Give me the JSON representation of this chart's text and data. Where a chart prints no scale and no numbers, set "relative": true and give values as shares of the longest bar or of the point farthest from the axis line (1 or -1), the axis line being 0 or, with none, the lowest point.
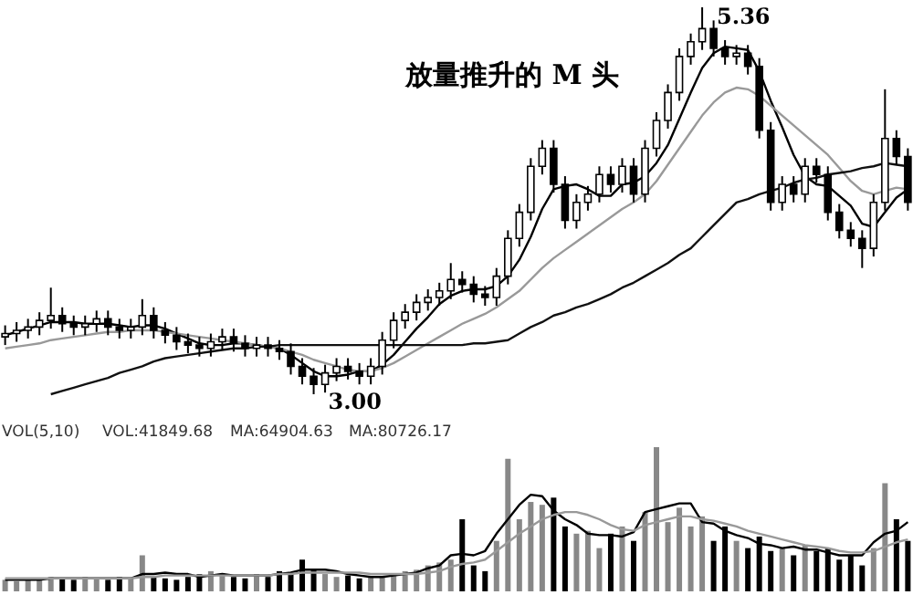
{
  "chart_data": [
    {
      "type": "candlestick",
      "title": "放量推升的 M 头",
      "annotations": [
        "5.36",
        "3.00"
      ],
      "categories": [
        null,
        null,
        null,
        null,
        null,
        null,
        null,
        null,
        null,
        null,
        null,
        null,
        null,
        null,
        null,
        null,
        null,
        null,
        null,
        null,
        null,
        null,
        null,
        null,
        null,
        null,
        null,
        null,
        null,
        null,
        null,
        null,
        null,
        null,
        null,
        null,
        null,
        null,
        null,
        null,
        null,
        null,
        null,
        null,
        null,
        null,
        null,
        null,
        null,
        null,
        null,
        null,
        null,
        null,
        null,
        null,
        null,
        null,
        null,
        null,
        null,
        null,
        null,
        null,
        null,
        null,
        null,
        null,
        null,
        null,
        null,
        null,
        null,
        null,
        null,
        null,
        null,
        null,
        null,
        null
      ],
      "ohlc": [
        [
          3.35,
          3.42,
          3.3,
          3.37
        ],
        [
          3.37,
          3.44,
          3.32,
          3.39
        ],
        [
          3.39,
          3.46,
          3.34,
          3.41
        ],
        [
          3.41,
          3.5,
          3.36,
          3.45
        ],
        [
          3.45,
          3.65,
          3.4,
          3.48
        ],
        [
          3.48,
          3.53,
          3.38,
          3.43
        ],
        [
          3.43,
          3.48,
          3.36,
          3.41
        ],
        [
          3.41,
          3.48,
          3.36,
          3.43
        ],
        [
          3.43,
          3.51,
          3.38,
          3.46
        ],
        [
          3.46,
          3.51,
          3.36,
          3.41
        ],
        [
          3.41,
          3.46,
          3.34,
          3.39
        ],
        [
          3.39,
          3.46,
          3.34,
          3.41
        ],
        [
          3.41,
          3.58,
          3.36,
          3.48
        ],
        [
          3.48,
          3.53,
          3.34,
          3.39
        ],
        [
          3.39,
          3.44,
          3.31,
          3.36
        ],
        [
          3.36,
          3.41,
          3.27,
          3.32
        ],
        [
          3.32,
          3.37,
          3.25,
          3.3
        ],
        [
          3.3,
          3.35,
          3.23,
          3.28
        ],
        [
          3.28,
          3.37,
          3.23,
          3.32
        ],
        [
          3.32,
          3.4,
          3.27,
          3.35
        ],
        [
          3.35,
          3.4,
          3.26,
          3.31
        ],
        [
          3.31,
          3.36,
          3.23,
          3.28
        ],
        [
          3.28,
          3.35,
          3.23,
          3.3
        ],
        [
          3.3,
          3.35,
          3.23,
          3.28
        ],
        [
          3.28,
          3.33,
          3.21,
          3.26
        ],
        [
          3.26,
          3.31,
          3.12,
          3.17
        ],
        [
          3.17,
          3.22,
          3.06,
          3.11
        ],
        [
          3.11,
          3.16,
          3.0,
          3.06
        ],
        [
          3.06,
          3.18,
          3.01,
          3.13
        ],
        [
          3.13,
          3.22,
          3.08,
          3.17
        ],
        [
          3.17,
          3.22,
          3.09,
          3.14
        ],
        [
          3.14,
          3.19,
          3.06,
          3.11
        ],
        [
          3.11,
          3.22,
          3.06,
          3.17
        ],
        [
          3.17,
          3.38,
          3.12,
          3.33
        ],
        [
          3.33,
          3.5,
          3.28,
          3.45
        ],
        [
          3.45,
          3.55,
          3.4,
          3.5
        ],
        [
          3.5,
          3.61,
          3.45,
          3.56
        ],
        [
          3.56,
          3.64,
          3.51,
          3.59
        ],
        [
          3.59,
          3.68,
          3.54,
          3.63
        ],
        [
          3.63,
          3.8,
          3.58,
          3.7
        ],
        [
          3.7,
          3.75,
          3.62,
          3.67
        ],
        [
          3.67,
          3.72,
          3.56,
          3.61
        ],
        [
          3.61,
          3.66,
          3.54,
          3.59
        ],
        [
          3.59,
          3.77,
          3.54,
          3.72
        ],
        [
          3.72,
          4.0,
          3.67,
          3.95
        ],
        [
          3.95,
          4.16,
          3.9,
          4.11
        ],
        [
          4.11,
          4.44,
          4.06,
          4.39
        ],
        [
          4.39,
          4.55,
          4.34,
          4.5
        ],
        [
          4.5,
          4.55,
          4.23,
          4.28
        ],
        [
          4.28,
          4.33,
          4.01,
          4.06
        ],
        [
          4.06,
          4.22,
          4.01,
          4.17
        ],
        [
          4.17,
          4.27,
          4.12,
          4.22
        ],
        [
          4.22,
          4.39,
          4.17,
          4.34
        ],
        [
          4.34,
          4.39,
          4.23,
          4.28
        ],
        [
          4.28,
          4.44,
          4.23,
          4.39
        ],
        [
          4.39,
          4.44,
          4.17,
          4.22
        ],
        [
          4.22,
          4.55,
          4.17,
          4.5
        ],
        [
          4.5,
          4.72,
          4.45,
          4.67
        ],
        [
          4.67,
          4.89,
          4.62,
          4.84
        ],
        [
          4.84,
          5.11,
          4.79,
          5.06
        ],
        [
          5.06,
          5.2,
          5.01,
          5.15
        ],
        [
          5.15,
          5.36,
          5.1,
          5.23
        ],
        [
          5.23,
          5.28,
          5.06,
          5.11
        ],
        [
          5.11,
          5.16,
          5.01,
          5.06
        ],
        [
          5.06,
          5.13,
          5.01,
          5.08
        ],
        [
          5.08,
          5.13,
          4.95,
          5.0
        ],
        [
          5.0,
          5.05,
          4.56,
          4.61
        ],
        [
          4.61,
          4.66,
          4.12,
          4.17
        ],
        [
          4.17,
          4.33,
          4.12,
          4.28
        ],
        [
          4.28,
          4.33,
          4.17,
          4.22
        ],
        [
          4.22,
          4.44,
          4.17,
          4.39
        ],
        [
          4.39,
          4.44,
          4.29,
          4.34
        ],
        [
          4.34,
          4.39,
          4.06,
          4.11
        ],
        [
          4.11,
          4.16,
          3.95,
          4.0
        ],
        [
          4.0,
          4.05,
          3.9,
          3.95
        ],
        [
          3.95,
          4.0,
          3.77,
          3.89
        ],
        [
          3.89,
          4.22,
          3.84,
          4.17
        ],
        [
          4.17,
          4.86,
          4.12,
          4.56
        ],
        [
          4.56,
          4.61,
          4.4,
          4.45
        ],
        [
          4.45,
          4.5,
          4.12,
          4.17
        ]
      ],
      "series": [
        {
          "type": "line",
          "color": "#000000",
          "values": [
            3.36,
            3.38,
            3.4,
            3.42,
            3.44,
            3.44,
            3.44,
            3.43,
            3.43,
            3.43,
            3.42,
            3.41,
            3.42,
            3.42,
            3.4,
            3.37,
            3.34,
            3.31,
            3.3,
            3.3,
            3.31,
            3.31,
            3.3,
            3.29,
            3.28,
            3.24,
            3.19,
            3.14,
            3.11,
            3.11,
            3.12,
            3.14,
            3.14,
            3.18,
            3.24,
            3.32,
            3.4,
            3.47,
            3.55,
            3.6,
            3.63,
            3.64,
            3.64,
            3.66,
            3.72,
            3.82,
            3.96,
            4.13,
            4.25,
            4.27,
            4.28,
            4.25,
            4.21,
            4.21,
            4.28,
            4.29,
            4.33,
            4.41,
            4.52,
            4.68,
            4.84,
            4.99,
            5.08,
            5.12,
            5.11,
            5.1,
            4.97,
            4.79,
            4.63,
            4.46,
            4.33,
            4.28,
            4.27,
            4.21,
            4.15,
            4.04,
            4.02,
            4.11,
            4.2,
            4.25
          ]
        },
        {
          "type": "line",
          "color": "#999999",
          "values": [
            3.28,
            3.29,
            3.3,
            3.31,
            3.33,
            3.34,
            3.35,
            3.36,
            3.37,
            3.38,
            3.38,
            3.39,
            3.39,
            3.39,
            3.38,
            3.37,
            3.36,
            3.35,
            3.34,
            3.33,
            3.32,
            3.31,
            3.3,
            3.29,
            3.28,
            3.26,
            3.24,
            3.21,
            3.19,
            3.17,
            3.15,
            3.14,
            3.14,
            3.16,
            3.19,
            3.23,
            3.27,
            3.31,
            3.35,
            3.39,
            3.43,
            3.46,
            3.49,
            3.53,
            3.58,
            3.63,
            3.7,
            3.77,
            3.83,
            3.88,
            3.93,
            3.98,
            4.03,
            4.08,
            4.13,
            4.17,
            4.22,
            4.3,
            4.4,
            4.5,
            4.6,
            4.7,
            4.78,
            4.84,
            4.87,
            4.86,
            4.82,
            4.76,
            4.7,
            4.64,
            4.58,
            4.52,
            4.46,
            4.38,
            4.3,
            4.24,
            4.22,
            4.24,
            4.26,
            4.25
          ]
        },
        {
          "type": "line",
          "color": "#111111",
          "values": [
            null,
            null,
            null,
            null,
            3.0,
            3.02,
            3.04,
            3.06,
            3.08,
            3.1,
            3.13,
            3.15,
            3.17,
            3.2,
            3.22,
            3.23,
            3.24,
            3.25,
            3.26,
            3.27,
            3.28,
            3.28,
            3.29,
            3.29,
            3.3,
            3.3,
            3.3,
            3.3,
            3.3,
            3.3,
            3.3,
            3.3,
            3.3,
            3.3,
            3.3,
            3.3,
            3.3,
            3.3,
            3.3,
            3.3,
            3.3,
            3.31,
            3.31,
            3.32,
            3.33,
            3.37,
            3.41,
            3.44,
            3.48,
            3.5,
            3.53,
            3.55,
            3.58,
            3.61,
            3.65,
            3.68,
            3.72,
            3.76,
            3.8,
            3.85,
            3.89,
            3.96,
            4.03,
            4.1,
            4.17,
            4.19,
            4.22,
            4.24,
            4.26,
            4.29,
            4.31,
            4.32,
            4.34,
            4.35,
            4.36,
            4.38,
            4.39,
            4.41,
            4.4,
            4.39
          ]
        }
      ]
    },
    {
      "type": "bar",
      "relative": true,
      "annotations": [
        "VOL(5,10)",
        "VOL:41849.68",
        "MA:64904.63",
        "MA:80726.17"
      ],
      "categories": [
        null,
        null,
        null,
        null,
        null,
        null,
        null,
        null,
        null,
        null,
        null,
        null,
        null,
        null,
        null,
        null,
        null,
        null,
        null,
        null,
        null,
        null,
        null,
        null,
        null,
        null,
        null,
        null,
        null,
        null,
        null,
        null,
        null,
        null,
        null,
        null,
        null,
        null,
        null,
        null,
        null,
        null,
        null,
        null,
        null,
        null,
        null,
        null,
        null,
        null,
        null,
        null,
        null,
        null,
        null,
        null,
        null,
        null,
        null,
        null,
        null,
        null,
        null,
        null,
        null,
        null,
        null,
        null,
        null,
        null,
        null,
        null,
        null,
        null,
        null,
        null,
        null,
        null,
        null,
        null
      ],
      "series": [
        {
          "type": "bar",
          "values": [
            0.08,
            0.07,
            0.09,
            0.08,
            0.1,
            0.09,
            0.08,
            0.1,
            0.09,
            0.08,
            0.1,
            0.09,
            0.25,
            0.1,
            0.09,
            0.08,
            0.1,
            0.12,
            0.14,
            0.12,
            0.1,
            0.09,
            0.12,
            0.1,
            0.14,
            0.12,
            0.22,
            0.15,
            0.12,
            0.1,
            0.11,
            0.09,
            0.1,
            0.1,
            0.12,
            0.14,
            0.15,
            0.18,
            0.2,
            0.22,
            0.5,
            0.18,
            0.14,
            0.35,
            0.92,
            0.5,
            0.62,
            0.6,
            0.65,
            0.45,
            0.4,
            0.42,
            0.3,
            0.4,
            0.45,
            0.35,
            0.55,
            1,
            0.48,
            0.58,
            0.45,
            0.52,
            0.35,
            0.45,
            0.35,
            0.3,
            0.38,
            0.28,
            0.3,
            0.25,
            0.32,
            0.28,
            0.3,
            0.22,
            0.25,
            0.18,
            0.3,
            0.75,
            0.5,
            0.35
          ],
          "colors": [
            "#888888",
            "#888888",
            "#888888",
            "#888888",
            "#888888",
            "#000000",
            "#000000",
            "#888888",
            "#888888",
            "#000000",
            "#000000",
            "#888888",
            "#888888",
            "#000000",
            "#000000",
            "#000000",
            "#000000",
            "#000000",
            "#888888",
            "#888888",
            "#000000",
            "#000000",
            "#888888",
            "#000000",
            "#000000",
            "#000000",
            "#000000",
            "#000000",
            "#888888",
            "#888888",
            "#000000",
            "#000000",
            "#888888",
            "#888888",
            "#888888",
            "#888888",
            "#888888",
            "#888888",
            "#888888",
            "#888888",
            "#000000",
            "#000000",
            "#000000",
            "#888888",
            "#888888",
            "#888888",
            "#888888",
            "#888888",
            "#000000",
            "#000000",
            "#888888",
            "#888888",
            "#888888",
            "#000000",
            "#888888",
            "#000000",
            "#888888",
            "#888888",
            "#888888",
            "#888888",
            "#888888",
            "#888888",
            "#000000",
            "#000000",
            "#888888",
            "#000000",
            "#000000",
            "#000000",
            "#888888",
            "#000000",
            "#888888",
            "#000000",
            "#000000",
            "#000000",
            "#000000",
            "#000000",
            "#888888",
            "#888888",
            "#000000",
            "#000000"
          ]
        },
        {
          "type": "line",
          "color": "#000000",
          "values": [
            0.08,
            0.08,
            0.08,
            0.08,
            0.09,
            0.09,
            0.09,
            0.09,
            0.09,
            0.09,
            0.09,
            0.09,
            0.12,
            0.12,
            0.13,
            0.12,
            0.12,
            0.1,
            0.11,
            0.12,
            0.11,
            0.11,
            0.11,
            0.11,
            0.12,
            0.13,
            0.15,
            0.15,
            0.15,
            0.14,
            0.12,
            0.11,
            0.1,
            0.1,
            0.11,
            0.12,
            0.13,
            0.16,
            0.18,
            0.25,
            0.26,
            0.25,
            0.28,
            0.4,
            0.5,
            0.6,
            0.67,
            0.66,
            0.56,
            0.5,
            0.46,
            0.4,
            0.39,
            0.39,
            0.38,
            0.41,
            0.55,
            0.57,
            0.59,
            0.61,
            0.61,
            0.48,
            0.47,
            0.42,
            0.39,
            0.37,
            0.33,
            0.32,
            0.3,
            0.31,
            0.29,
            0.29,
            0.27,
            0.25,
            0.25,
            0.25,
            0.34,
            0.4,
            0.42,
            0.48
          ]
        },
        {
          "type": "line",
          "color": "#999999",
          "values": [
            0.09,
            0.09,
            0.09,
            0.09,
            0.09,
            0.09,
            0.09,
            0.09,
            0.09,
            0.09,
            0.09,
            0.09,
            0.1,
            0.1,
            0.11,
            0.11,
            0.11,
            0.11,
            0.11,
            0.11,
            0.11,
            0.11,
            0.11,
            0.11,
            0.12,
            0.12,
            0.13,
            0.13,
            0.13,
            0.13,
            0.13,
            0.13,
            0.12,
            0.12,
            0.12,
            0.12,
            0.12,
            0.13,
            0.14,
            0.17,
            0.19,
            0.2,
            0.22,
            0.28,
            0.34,
            0.4,
            0.45,
            0.5,
            0.53,
            0.55,
            0.55,
            0.53,
            0.5,
            0.46,
            0.43,
            0.42,
            0.46,
            0.48,
            0.5,
            0.52,
            0.52,
            0.5,
            0.49,
            0.47,
            0.45,
            0.42,
            0.4,
            0.38,
            0.36,
            0.34,
            0.32,
            0.31,
            0.3,
            0.28,
            0.27,
            0.27,
            0.28,
            0.31,
            0.34,
            0.36
          ]
        }
      ]
    }
  ]
}
